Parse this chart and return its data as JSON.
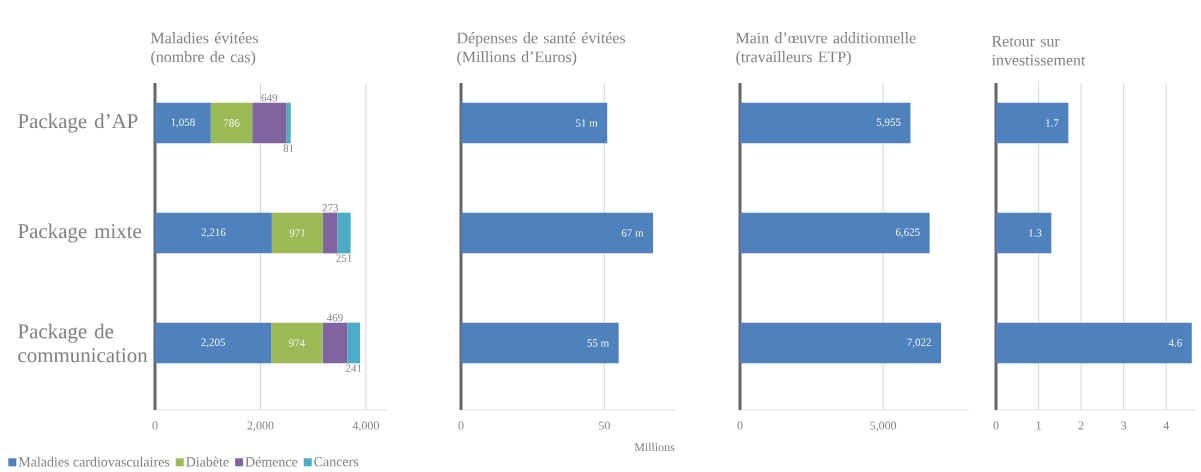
{
  "chart_data": [
    {
      "type": "bar",
      "orientation": "horizontal",
      "stacked": true,
      "title": "Maladies évitées (nombre de cas)",
      "categories": [
        "Package d’AP",
        "Package mixte",
        "Package de communication"
      ],
      "series": [
        {
          "name": "Maladies cardiovasculaires",
          "color": "#4f81bd",
          "values": [
            1058,
            2216,
            2205
          ],
          "value_labels": [
            "1,058",
            "2,216",
            "2,205"
          ]
        },
        {
          "name": "Diabète",
          "color": "#9bbb59",
          "values": [
            786,
            971,
            974
          ],
          "value_labels": [
            "786",
            "971",
            "974"
          ]
        },
        {
          "name": "Démence",
          "color": "#8064a2",
          "values": [
            649,
            273,
            469
          ],
          "value_labels": [
            "649",
            "273",
            "469"
          ]
        },
        {
          "name": "Cancers",
          "color": "#4bacc6",
          "values": [
            81,
            251,
            241
          ],
          "value_labels": [
            "81",
            "251",
            "241"
          ]
        }
      ],
      "xlim": [
        0,
        4400
      ],
      "xticks": [
        0,
        {
          "value": 2000,
          "label": "2,000"
        },
        {
          "value": 4000,
          "label": "4,000"
        }
      ],
      "grid": "x",
      "legend": "bottom"
    },
    {
      "type": "bar",
      "orientation": "horizontal",
      "title": "Dépenses de santé évitées (Millions d’Euros)",
      "xlabel": "Millions",
      "categories": [
        null,
        null,
        null
      ],
      "values": [
        51,
        67,
        55
      ],
      "value_labels": [
        "51 m",
        "67  m",
        "55 m"
      ],
      "color": "#4f81bd",
      "xlim": [
        0,
        75
      ],
      "xticks": [
        0,
        50
      ],
      "grid": "x",
      "tick_labels": "x"
    },
    {
      "type": "bar",
      "orientation": "horizontal",
      "title": "Main d’œuvre additionnelle (travailleurs ETP)",
      "categories": [
        null,
        null,
        null
      ],
      "values": [
        5955,
        6625,
        7022
      ],
      "value_labels": [
        "5,955",
        "6,625",
        "7,022"
      ],
      "color": "#4f81bd",
      "xlim": [
        0,
        8000
      ],
      "xticks": [
        0,
        {
          "value": 5000,
          "label": "5,000"
        }
      ],
      "grid": "x",
      "tick_labels": "x"
    },
    {
      "type": "bar",
      "orientation": "horizontal",
      "title": "Retour sur investissement",
      "categories": [
        null,
        null,
        null
      ],
      "values": [
        1.7,
        1.3,
        4.6
      ],
      "data_labels": true,
      "color": "#4f81bd",
      "xlim": [
        0,
        4.7
      ],
      "xticks": [
        0,
        1,
        2,
        3,
        4
      ],
      "grid": "x",
      "tick_labels": "x"
    }
  ]
}
